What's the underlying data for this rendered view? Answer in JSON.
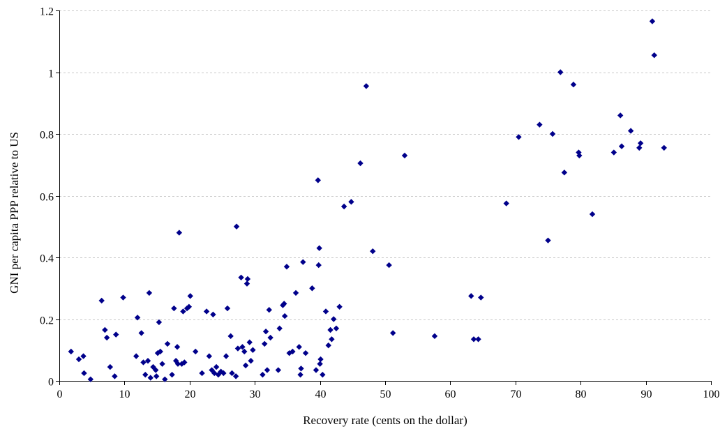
{
  "chart_data": {
    "type": "scatter",
    "xlabel": "Recovery rate (cents on the dollar)",
    "ylabel": "GNI per capita PPP relative to US",
    "xlim": [
      0,
      100
    ],
    "ylim": [
      0,
      1.2
    ],
    "xticks": [
      0,
      10,
      20,
      30,
      40,
      50,
      60,
      70,
      80,
      90,
      100
    ],
    "xtick_labels": [
      "0",
      "10",
      "20",
      "30",
      "40",
      "50",
      "60",
      "70",
      "80",
      "90",
      "100"
    ],
    "yticks": [
      0,
      0.2,
      0.4,
      0.6,
      0.8,
      1.0,
      1.2
    ],
    "ytick_labels": [
      "0",
      "0.2",
      "0.4",
      "0.6",
      "0.8",
      "1",
      "1.2"
    ],
    "grid": "horizontal dashed",
    "marker_color": "#00008b",
    "marker": "diamond",
    "series": [
      {
        "points": [
          [
            1.8,
            0.095
          ],
          [
            3.0,
            0.07
          ],
          [
            3.7,
            0.08
          ],
          [
            3.8,
            0.025
          ],
          [
            4.8,
            0.005
          ],
          [
            6.5,
            0.26
          ],
          [
            7.0,
            0.165
          ],
          [
            7.3,
            0.14
          ],
          [
            7.8,
            0.045
          ],
          [
            8.5,
            0.015
          ],
          [
            8.7,
            0.15
          ],
          [
            9.8,
            0.27
          ],
          [
            11.8,
            0.08
          ],
          [
            12.0,
            0.205
          ],
          [
            12.6,
            0.155
          ],
          [
            12.9,
            0.06
          ],
          [
            13.2,
            0.02
          ],
          [
            13.6,
            0.065
          ],
          [
            13.8,
            0.285
          ],
          [
            14.0,
            0.01
          ],
          [
            14.4,
            0.045
          ],
          [
            14.8,
            0.035
          ],
          [
            14.9,
            0.015
          ],
          [
            15.1,
            0.09
          ],
          [
            15.3,
            0.19
          ],
          [
            15.5,
            0.095
          ],
          [
            15.8,
            0.055
          ],
          [
            16.2,
            0.005
          ],
          [
            16.6,
            0.12
          ],
          [
            17.3,
            0.02
          ],
          [
            17.6,
            0.235
          ],
          [
            17.9,
            0.065
          ],
          [
            18.1,
            0.11
          ],
          [
            18.2,
            0.055
          ],
          [
            18.4,
            0.48
          ],
          [
            18.8,
            0.055
          ],
          [
            19.0,
            0.225
          ],
          [
            19.2,
            0.06
          ],
          [
            19.6,
            0.235
          ],
          [
            19.9,
            0.24
          ],
          [
            20.1,
            0.275
          ],
          [
            20.9,
            0.095
          ],
          [
            21.9,
            0.025
          ],
          [
            22.6,
            0.225
          ],
          [
            23.0,
            0.08
          ],
          [
            23.4,
            0.035
          ],
          [
            23.6,
            0.215
          ],
          [
            23.8,
            0.025
          ],
          [
            24.1,
            0.045
          ],
          [
            24.4,
            0.02
          ],
          [
            24.8,
            0.03
          ],
          [
            25.2,
            0.025
          ],
          [
            25.6,
            0.08
          ],
          [
            25.8,
            0.235
          ],
          [
            26.3,
            0.145
          ],
          [
            26.5,
            0.025
          ],
          [
            27.1,
            0.015
          ],
          [
            27.2,
            0.5
          ],
          [
            27.4,
            0.105
          ],
          [
            27.9,
            0.335
          ],
          [
            28.1,
            0.11
          ],
          [
            28.4,
            0.095
          ],
          [
            28.6,
            0.05
          ],
          [
            28.8,
            0.315
          ],
          [
            28.9,
            0.33
          ],
          [
            29.2,
            0.125
          ],
          [
            29.4,
            0.065
          ],
          [
            29.7,
            0.1
          ],
          [
            31.2,
            0.02
          ],
          [
            31.5,
            0.12
          ],
          [
            31.7,
            0.16
          ],
          [
            31.9,
            0.035
          ],
          [
            32.2,
            0.23
          ],
          [
            32.4,
            0.14
          ],
          [
            33.6,
            0.035
          ],
          [
            33.8,
            0.17
          ],
          [
            34.3,
            0.245
          ],
          [
            34.5,
            0.25
          ],
          [
            34.6,
            0.21
          ],
          [
            34.9,
            0.37
          ],
          [
            35.3,
            0.09
          ],
          [
            35.8,
            0.095
          ],
          [
            36.3,
            0.285
          ],
          [
            36.8,
            0.11
          ],
          [
            37.0,
            0.02
          ],
          [
            37.1,
            0.04
          ],
          [
            37.4,
            0.385
          ],
          [
            37.8,
            0.09
          ],
          [
            38.8,
            0.3
          ],
          [
            39.4,
            0.035
          ],
          [
            39.7,
            0.65
          ],
          [
            39.8,
            0.375
          ],
          [
            39.9,
            0.43
          ],
          [
            40.0,
            0.055
          ],
          [
            40.1,
            0.07
          ],
          [
            40.4,
            0.02
          ],
          [
            40.9,
            0.225
          ],
          [
            41.3,
            0.115
          ],
          [
            41.6,
            0.165
          ],
          [
            41.8,
            0.135
          ],
          [
            42.1,
            0.2
          ],
          [
            42.5,
            0.17
          ],
          [
            43.0,
            0.24
          ],
          [
            43.7,
            0.565
          ],
          [
            44.8,
            0.58
          ],
          [
            46.2,
            0.705
          ],
          [
            47.1,
            0.955
          ],
          [
            48.1,
            0.42
          ],
          [
            50.6,
            0.375
          ],
          [
            51.2,
            0.155
          ],
          [
            53.0,
            0.73
          ],
          [
            57.6,
            0.145
          ],
          [
            63.2,
            0.275
          ],
          [
            63.6,
            0.135
          ],
          [
            64.3,
            0.135
          ],
          [
            64.7,
            0.27
          ],
          [
            68.6,
            0.575
          ],
          [
            70.5,
            0.79
          ],
          [
            73.7,
            0.83
          ],
          [
            75.0,
            0.455
          ],
          [
            75.7,
            0.8
          ],
          [
            76.9,
            1.0
          ],
          [
            77.5,
            0.675
          ],
          [
            78.9,
            0.96
          ],
          [
            79.7,
            0.74
          ],
          [
            79.8,
            0.73
          ],
          [
            81.8,
            0.54
          ],
          [
            85.1,
            0.74
          ],
          [
            86.1,
            0.86
          ],
          [
            86.3,
            0.76
          ],
          [
            87.7,
            0.81
          ],
          [
            89.0,
            0.755
          ],
          [
            89.2,
            0.77
          ],
          [
            91.0,
            1.165
          ],
          [
            91.3,
            1.055
          ],
          [
            92.8,
            0.755
          ]
        ]
      }
    ]
  }
}
